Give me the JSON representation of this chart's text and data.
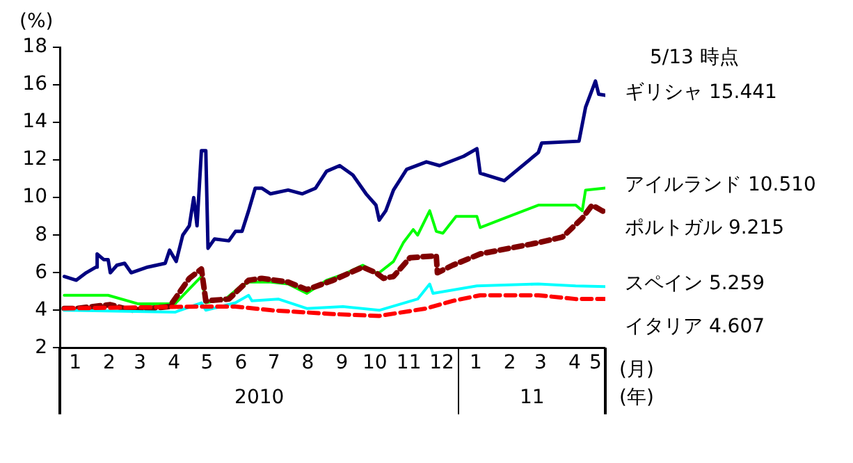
{
  "chart_data": {
    "type": "line",
    "ylabel": "(%)",
    "xlabel": "(月)",
    "annotations": [
      "5/13 時点",
      "(年)",
      "2010",
      "11"
    ],
    "xlim": [
      "2010-01-01",
      "2011-05-13"
    ],
    "ylim": [
      2,
      18
    ],
    "yticks": [
      2,
      4,
      6,
      8,
      10,
      12,
      14,
      16,
      18
    ],
    "xticks": [
      {
        "value": "2010-01-15",
        "label": "1"
      },
      {
        "value": "2010-02-15",
        "label": "2"
      },
      {
        "value": "2010-03-15",
        "label": "3"
      },
      {
        "value": "2010-04-15",
        "label": "4"
      },
      {
        "value": "2010-05-15",
        "label": "5"
      },
      {
        "value": "2010-06-15",
        "label": "6"
      },
      {
        "value": "2010-07-15",
        "label": "7"
      },
      {
        "value": "2010-08-15",
        "label": "8"
      },
      {
        "value": "2010-09-15",
        "label": "9"
      },
      {
        "value": "2010-10-15",
        "label": "10"
      },
      {
        "value": "2010-11-15",
        "label": "11"
      },
      {
        "value": "2010-12-15",
        "label": "12"
      },
      {
        "value": "2011-01-15",
        "label": "1"
      },
      {
        "value": "2011-02-15",
        "label": "2"
      },
      {
        "value": "2011-03-15",
        "label": "3"
      },
      {
        "value": "2011-04-15",
        "label": "4"
      },
      {
        "value": "2011-05-04",
        "label": "5"
      }
    ],
    "grid": false,
    "marker": "none",
    "series": [
      {
        "name": "ギリシャ",
        "color": "#000080",
        "line_style": "solid",
        "x": [
          "2010-01-05",
          "2010-01-16",
          "2010-01-25",
          "2010-02-03",
          "2010-02-04",
          "2010-02-10",
          "2010-02-14",
          "2010-02-16",
          "2010-02-22",
          "2010-03-01",
          "2010-03-07",
          "2010-03-22",
          "2010-04-07",
          "2010-04-11",
          "2010-04-17",
          "2010-04-23",
          "2010-04-29",
          "2010-05-03",
          "2010-05-06",
          "2010-05-10",
          "2010-05-14",
          "2010-05-16",
          "2010-05-22",
          "2010-06-04",
          "2010-06-10",
          "2010-06-16",
          "2010-06-22",
          "2010-06-28",
          "2010-07-04",
          "2010-07-12",
          "2010-07-28",
          "2010-08-10",
          "2010-08-22",
          "2010-09-01",
          "2010-09-13",
          "2010-09-25",
          "2010-10-07",
          "2010-10-16",
          "2010-10-19",
          "2010-10-25",
          "2010-11-01",
          "2010-11-13",
          "2010-12-01",
          "2010-12-13",
          "2011-01-04",
          "2011-01-16",
          "2011-01-19",
          "2011-02-10",
          "2011-03-13",
          "2011-03-16",
          "2011-04-19",
          "2011-04-25",
          "2011-05-04",
          "2011-05-07",
          "2011-05-13"
        ],
        "values": [
          5.8,
          5.6,
          6.0,
          6.3,
          7.0,
          6.7,
          6.7,
          6.0,
          6.4,
          6.5,
          6.0,
          6.3,
          6.5,
          7.2,
          6.6,
          8.0,
          8.5,
          10.0,
          8.5,
          12.5,
          12.5,
          7.3,
          7.8,
          7.7,
          8.2,
          8.2,
          9.3,
          10.5,
          10.5,
          10.2,
          10.4,
          10.2,
          10.5,
          11.4,
          11.7,
          11.2,
          10.2,
          9.6,
          8.8,
          9.3,
          10.4,
          11.5,
          11.9,
          11.7,
          12.2,
          12.6,
          11.3,
          10.9,
          12.4,
          12.9,
          13.0,
          14.8,
          16.2,
          15.5,
          15.441
        ],
        "value_labels": [
          null,
          null,
          null,
          null,
          null,
          null,
          null,
          null,
          null,
          null,
          null,
          null,
          null,
          null,
          null,
          null,
          null,
          null,
          null,
          null,
          null,
          null,
          null,
          null,
          null,
          null,
          null,
          null,
          null,
          null,
          null,
          null,
          null,
          null,
          null,
          null,
          null,
          null,
          null,
          null,
          null,
          null,
          null,
          null,
          null,
          null,
          null,
          null,
          null,
          null,
          null,
          null,
          null,
          null,
          "15.441"
        ]
      },
      {
        "name": "アイルランド",
        "color": "#00ff00",
        "line_style": "solid",
        "x": [
          "2010-01-05",
          "2010-02-14",
          "2010-03-13",
          "2010-04-16",
          "2010-05-10",
          "2010-05-14",
          "2010-06-01",
          "2010-06-13",
          "2010-06-22",
          "2010-07-12",
          "2010-07-28",
          "2010-08-14",
          "2010-09-01",
          "2010-09-16",
          "2010-10-04",
          "2010-10-16",
          "2010-10-19",
          "2010-11-01",
          "2010-11-10",
          "2010-11-19",
          "2010-11-23",
          "2010-12-04",
          "2010-12-10",
          "2010-12-16",
          "2010-12-28",
          "2011-01-16",
          "2011-01-19",
          "2011-02-10",
          "2011-03-13",
          "2011-04-16",
          "2011-04-22",
          "2011-04-25",
          "2011-05-13"
        ],
        "values": [
          4.8,
          4.8,
          4.35,
          4.35,
          5.8,
          4.4,
          4.6,
          5.2,
          5.5,
          5.5,
          5.4,
          4.9,
          5.6,
          5.9,
          6.4,
          6.0,
          6.0,
          6.6,
          7.6,
          8.3,
          8.0,
          9.3,
          8.2,
          8.1,
          9.0,
          9.0,
          8.4,
          8.9,
          9.6,
          9.6,
          9.3,
          10.4,
          10.51
        ],
        "value_labels": [
          null,
          null,
          null,
          null,
          null,
          null,
          null,
          null,
          null,
          null,
          null,
          null,
          null,
          null,
          null,
          null,
          null,
          null,
          null,
          null,
          null,
          null,
          null,
          null,
          null,
          null,
          null,
          null,
          null,
          null,
          null,
          null,
          "10.510"
        ]
      },
      {
        "name": "ポルトガル",
        "color": "#800000",
        "line_style": "dashed",
        "x": [
          "2010-01-05",
          "2010-01-16",
          "2010-02-16",
          "2010-03-07",
          "2010-04-11",
          "2010-04-29",
          "2010-05-10",
          "2010-05-14",
          "2010-06-04",
          "2010-06-22",
          "2010-07-04",
          "2010-07-28",
          "2010-08-14",
          "2010-09-07",
          "2010-10-04",
          "2010-10-16",
          "2010-10-23",
          "2010-11-01",
          "2010-11-16",
          "2010-12-10",
          "2010-12-11",
          "2010-12-25",
          "2011-01-19",
          "2011-03-13",
          "2011-04-04",
          "2011-04-22",
          "2011-05-01",
          "2011-05-10",
          "2011-05-13"
        ],
        "values": [
          4.1,
          4.1,
          4.3,
          4.0,
          4.2,
          5.7,
          6.2,
          4.5,
          4.6,
          5.6,
          5.7,
          5.5,
          5.1,
          5.6,
          6.3,
          6.0,
          5.7,
          5.8,
          6.8,
          6.9,
          6.0,
          6.4,
          7.0,
          7.6,
          7.9,
          8.9,
          9.6,
          9.3,
          9.215
        ],
        "value_labels": [
          null,
          null,
          null,
          null,
          null,
          null,
          null,
          null,
          null,
          null,
          null,
          null,
          null,
          null,
          null,
          null,
          null,
          null,
          null,
          null,
          null,
          null,
          null,
          null,
          null,
          null,
          null,
          null,
          "9.215"
        ]
      },
      {
        "name": "スペイン",
        "color": "#00ffff",
        "line_style": "solid",
        "x": [
          "2010-01-05",
          "2010-04-16",
          "2010-05-10",
          "2010-05-14",
          "2010-06-10",
          "2010-06-22",
          "2010-06-25",
          "2010-07-19",
          "2010-08-14",
          "2010-09-16",
          "2010-10-19",
          "2010-11-23",
          "2010-12-04",
          "2010-12-07",
          "2011-01-16",
          "2011-03-13",
          "2011-04-16",
          "2011-05-13"
        ],
        "values": [
          4.0,
          3.9,
          4.4,
          4.0,
          4.4,
          4.8,
          4.5,
          4.6,
          4.1,
          4.2,
          4.0,
          4.6,
          5.4,
          4.9,
          5.3,
          5.4,
          5.3,
          5.259
        ],
        "value_labels": [
          null,
          null,
          null,
          null,
          null,
          null,
          null,
          null,
          null,
          null,
          null,
          null,
          null,
          null,
          null,
          null,
          null,
          "5.259"
        ]
      },
      {
        "name": "イタリア",
        "color": "#ff0000",
        "line_style": "dashed",
        "x": [
          "2010-01-05",
          "2010-05-07",
          "2010-06-10",
          "2010-07-13",
          "2010-09-07",
          "2010-10-19",
          "2010-12-01",
          "2010-12-25",
          "2011-01-19",
          "2011-03-13",
          "2011-04-16",
          "2011-05-13"
        ],
        "values": [
          4.1,
          4.2,
          4.2,
          4.0,
          3.8,
          3.7,
          4.1,
          4.5,
          4.8,
          4.8,
          4.6,
          4.607
        ],
        "value_labels": [
          null,
          null,
          null,
          null,
          null,
          null,
          null,
          null,
          null,
          null,
          null,
          "4.607"
        ]
      }
    ]
  }
}
